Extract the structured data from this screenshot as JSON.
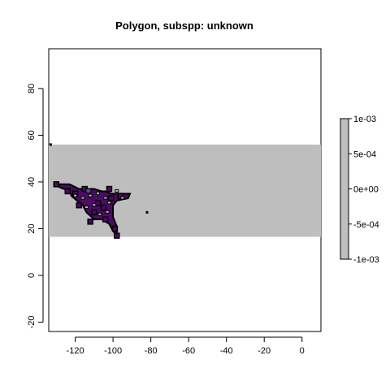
{
  "chart_data": {
    "type": "heatmap",
    "title": "Polygon, subspp: unknown",
    "xlabel": "",
    "ylabel": "",
    "xlim": [
      -134,
      10
    ],
    "ylim": [
      -24,
      97
    ],
    "x_ticks": [
      -120,
      -100,
      -80,
      -60,
      -40,
      -20,
      0
    ],
    "y_ticks": [
      -20,
      0,
      20,
      40,
      60,
      80
    ],
    "x_tick_labels": [
      "-120",
      "-100",
      "-80",
      "-60",
      "-40",
      "-20",
      "0"
    ],
    "y_tick_labels": [
      "-20",
      "0",
      "20",
      "40",
      "60",
      "80"
    ],
    "raster_extent": {
      "x": [
        -134,
        10
      ],
      "y": [
        16.5,
        56
      ]
    },
    "raster_value": 0,
    "raster_color": "#bebebe",
    "polygon_fill": "#4b0a63",
    "polygon_edge": "#000000",
    "polygon_points": [
      [
        -130,
        39
      ],
      [
        -123,
        39
      ],
      [
        -118,
        37
      ],
      [
        -113,
        37
      ],
      [
        -110,
        37
      ],
      [
        -106,
        36
      ],
      [
        -104,
        36
      ],
      [
        -101,
        35
      ],
      [
        -96,
        35
      ],
      [
        -91,
        35
      ],
      [
        -92,
        33
      ],
      [
        -98,
        32
      ],
      [
        -100,
        30
      ],
      [
        -100,
        25
      ],
      [
        -98,
        21
      ],
      [
        -98,
        17
      ],
      [
        -100,
        19
      ],
      [
        -102,
        22
      ],
      [
        -106,
        24
      ],
      [
        -110,
        24
      ],
      [
        -114,
        27
      ],
      [
        -116,
        30
      ],
      [
        -119,
        32
      ],
      [
        -122,
        34
      ],
      [
        -123,
        36
      ],
      [
        -126,
        37
      ],
      [
        -129,
        38
      ]
    ],
    "polygon_cells": [
      [
        -130,
        39
      ],
      [
        -115,
        37
      ],
      [
        -102,
        37
      ],
      [
        -96,
        34
      ],
      [
        -118,
        30
      ],
      [
        -110,
        27
      ],
      [
        -105,
        29
      ],
      [
        -104,
        24
      ],
      [
        -99,
        20
      ],
      [
        -98,
        17
      ],
      [
        -112,
        23
      ],
      [
        -108,
        31
      ],
      [
        -101,
        33
      ],
      [
        -120,
        35
      ],
      [
        -124,
        36
      ]
    ],
    "gap_cells": [
      [
        -120,
        34
      ],
      [
        -116,
        33
      ],
      [
        -112,
        34
      ],
      [
        -108,
        35
      ],
      [
        -104,
        33
      ],
      [
        -103,
        27
      ],
      [
        -110,
        30
      ],
      [
        -114,
        29
      ],
      [
        -102,
        31
      ],
      [
        -98,
        36
      ],
      [
        -95,
        33
      ],
      [
        -107,
        26
      ]
    ],
    "highlight_cell": [
      -113,
      36
    ],
    "highlight_color": "#4e4e9a",
    "outlier_points": [
      [
        -82,
        27
      ],
      [
        -133,
        56
      ]
    ],
    "legend": {
      "range": [
        -0.001,
        0.001
      ],
      "tick_values": [
        0.001,
        0.0005,
        0,
        -0.0005,
        -0.001
      ],
      "tick_labels": [
        "1e-03",
        "5e-04",
        "0e+00",
        "-5e-04",
        "-1e-03"
      ],
      "color": "#bebebe"
    }
  }
}
